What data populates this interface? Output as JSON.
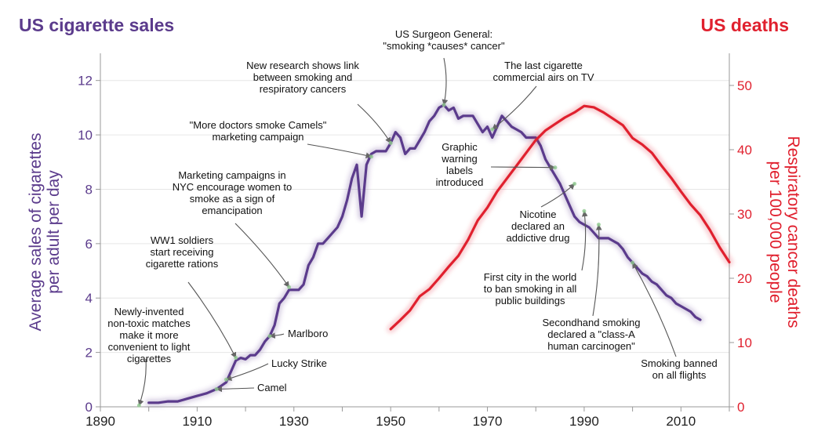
{
  "titles": {
    "left": "US cigarette sales",
    "right": "US deaths"
  },
  "chart_data": {
    "type": "line",
    "x_axis": {
      "range": [
        1890,
        2020
      ],
      "ticks": [
        "1890",
        "1910",
        "1930",
        "1950",
        "1970",
        "1990",
        "2010"
      ]
    },
    "left_axis": {
      "label_lines": [
        "Average sales of cigarettes",
        "per adult per day"
      ],
      "range": [
        0,
        13
      ],
      "ticks": [
        "0",
        "2",
        "4",
        "6",
        "8",
        "10",
        "12"
      ],
      "color": "#5b3b8c"
    },
    "right_axis": {
      "label_lines": [
        "Respiratory cancer deaths",
        "per 100,000 people"
      ],
      "range": [
        0,
        55
      ],
      "ticks": [
        "0",
        "10",
        "20",
        "30",
        "40",
        "50"
      ],
      "color": "#e0202e"
    },
    "grid": "horizontal",
    "series": [
      {
        "key": "sales",
        "axis": "left",
        "color": "#5b3b8c",
        "x": [
          1900,
          1902,
          1904,
          1906,
          1908,
          1910,
          1912,
          1914,
          1916,
          1917,
          1918,
          1919,
          1920,
          1921,
          1922,
          1923,
          1924,
          1925,
          1926,
          1927,
          1928,
          1929,
          1930,
          1931,
          1932,
          1933,
          1934,
          1935,
          1936,
          1937,
          1938,
          1939,
          1940,
          1941,
          1942,
          1943,
          1944,
          1945,
          1946,
          1947,
          1948,
          1949,
          1950,
          1951,
          1952,
          1953,
          1954,
          1955,
          1956,
          1957,
          1958,
          1959,
          1960,
          1961,
          1962,
          1963,
          1964,
          1965,
          1966,
          1967,
          1968,
          1969,
          1970,
          1971,
          1972,
          1973,
          1974,
          1975,
          1976,
          1977,
          1978,
          1979,
          1980,
          1981,
          1982,
          1983,
          1984,
          1985,
          1986,
          1987,
          1988,
          1989,
          1990,
          1991,
          1992,
          1993,
          1994,
          1995,
          1996,
          1997,
          1998,
          1999,
          2000,
          2001,
          2002,
          2003,
          2004,
          2005,
          2006,
          2007,
          2008,
          2009,
          2010,
          2011,
          2012,
          2013,
          2014
        ],
        "values": [
          0.15,
          0.15,
          0.2,
          0.2,
          0.3,
          0.4,
          0.5,
          0.65,
          0.9,
          1.3,
          1.7,
          1.8,
          1.75,
          1.9,
          1.9,
          2.1,
          2.4,
          2.6,
          3.0,
          3.8,
          4.0,
          4.3,
          4.3,
          4.3,
          4.5,
          5.2,
          5.5,
          6.0,
          6.0,
          6.2,
          6.4,
          6.6,
          7.0,
          7.6,
          8.4,
          8.9,
          7.0,
          8.9,
          9.3,
          9.4,
          9.4,
          9.4,
          9.7,
          10.1,
          9.9,
          9.3,
          9.5,
          9.5,
          9.8,
          10.1,
          10.5,
          10.7,
          11.0,
          11.1,
          10.9,
          11.0,
          10.6,
          10.7,
          10.7,
          10.7,
          10.4,
          10.1,
          10.3,
          9.9,
          10.3,
          10.7,
          10.5,
          10.3,
          10.2,
          10.1,
          9.9,
          9.9,
          9.9,
          9.6,
          9.1,
          8.8,
          8.5,
          8.2,
          7.8,
          7.4,
          7.0,
          6.8,
          6.7,
          6.6,
          6.4,
          6.2,
          6.2,
          6.2,
          6.1,
          6.0,
          5.8,
          5.5,
          5.3,
          5.1,
          4.9,
          4.8,
          4.6,
          4.5,
          4.3,
          4.1,
          4.0,
          3.8,
          3.7,
          3.6,
          3.5,
          3.3,
          3.2
        ]
      },
      {
        "key": "deaths",
        "axis": "right",
        "color": "#e0202e",
        "x": [
          1950,
          1952,
          1954,
          1956,
          1958,
          1960,
          1962,
          1964,
          1966,
          1968,
          1970,
          1972,
          1974,
          1976,
          1978,
          1980,
          1982,
          1984,
          1986,
          1988,
          1990,
          1992,
          1994,
          1996,
          1998,
          2000,
          2002,
          2004,
          2006,
          2008,
          2010,
          2012,
          2014,
          2016,
          2018,
          2020
        ],
        "values": [
          12.1,
          13.5,
          15.0,
          17.2,
          18.3,
          20.0,
          21.8,
          23.5,
          26.0,
          29.0,
          31.0,
          33.5,
          35.5,
          37.5,
          39.5,
          41.5,
          43.0,
          44.0,
          45.0,
          45.8,
          46.8,
          46.6,
          45.8,
          44.8,
          43.8,
          41.8,
          40.8,
          39.5,
          37.5,
          35.6,
          33.5,
          31.5,
          29.8,
          27.5,
          24.8,
          22.5
        ]
      }
    ],
    "annotations": [
      {
        "key": "matches",
        "lines": [
          "Newly-invented",
          "non-toxic matches",
          "make it more",
          "convenient to light",
          "cigarettes"
        ],
        "target": [
          1898,
          0.05
        ]
      },
      {
        "key": "camel",
        "lines": [
          "Camel"
        ],
        "target": [
          1914,
          0.65
        ]
      },
      {
        "key": "lucky",
        "lines": [
          "Lucky Strike"
        ],
        "target": [
          1916,
          1.0
        ]
      },
      {
        "key": "marlboro",
        "lines": [
          "Marlboro"
        ],
        "target": [
          1925,
          2.6
        ]
      },
      {
        "key": "ww1",
        "lines": [
          "WW1 soldiers",
          "start receiving",
          "cigarette rations"
        ],
        "target": [
          1918,
          1.8
        ]
      },
      {
        "key": "nyc",
        "lines": [
          "Marketing campaigns in",
          "NYC encourage women to",
          "smoke as a sign of",
          "emancipation"
        ],
        "target": [
          1929,
          4.4
        ]
      },
      {
        "key": "camels_doctors",
        "lines": [
          "\"More doctors smoke Camels\"",
          "marketing campaign"
        ],
        "target": [
          1946,
          9.2
        ]
      },
      {
        "key": "research",
        "lines": [
          "New research shows link",
          "between smoking and",
          "respiratory cancers"
        ],
        "target": [
          1950,
          9.7
        ]
      },
      {
        "key": "surgeon",
        "lines": [
          "US Surgeon General:",
          "\"smoking *causes* cancer\""
        ],
        "target": [
          1961,
          11.1
        ]
      },
      {
        "key": "tv",
        "lines": [
          "The last cigarette",
          "commercial airs on TV"
        ],
        "target": [
          1971,
          10.2
        ]
      },
      {
        "key": "warning",
        "lines": [
          "Graphic",
          "warning",
          "labels",
          "introduced"
        ],
        "target": [
          1984,
          8.8
        ]
      },
      {
        "key": "nicotine",
        "lines": [
          "Nicotine",
          "declared an",
          "addictive drug"
        ],
        "target": [
          1988,
          8.2
        ]
      },
      {
        "key": "first_city",
        "lines": [
          "First city in the world",
          "to ban smoking in all",
          "public buildings"
        ],
        "target": [
          1990,
          7.2
        ]
      },
      {
        "key": "secondhand",
        "lines": [
          "Secondhand smoking",
          "declared a \"class-A",
          "human carcinogen\""
        ],
        "target": [
          1993,
          6.7
        ]
      },
      {
        "key": "flights",
        "lines": [
          "Smoking banned",
          "on all flights"
        ],
        "target": [
          2000,
          5.3
        ]
      }
    ]
  }
}
